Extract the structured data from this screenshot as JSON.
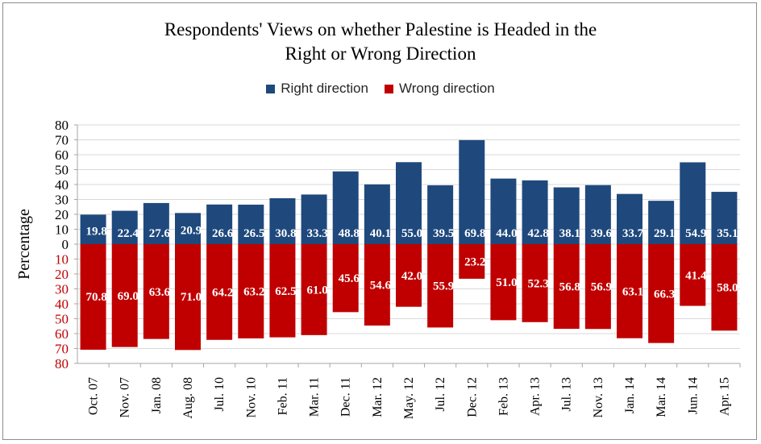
{
  "chart_data": {
    "type": "bar",
    "title": "Respondents' Views on whether Palestine is Headed in the\nRight or Wrong Direction",
    "ylabel": "Percentage",
    "xlabel": "",
    "ylim": [
      -80,
      80
    ],
    "yticks": [
      80,
      70,
      60,
      50,
      40,
      30,
      20,
      10,
      0,
      10,
      20,
      30,
      40,
      50,
      60,
      70,
      80
    ],
    "legend_position": "top-center",
    "grid": true,
    "categories": [
      "Oct. 07",
      "Nov. 07",
      "Jan. 08",
      "Aug. 08",
      "Jul. 10",
      "Nov. 10",
      "Feb. 11",
      "Mar. 11",
      "Dec. 11",
      "Mar. 12",
      "May. 12",
      "Jul. 12",
      "Dec. 12",
      "Feb. 13",
      "Apr. 13",
      "Jul. 13",
      "Nov. 13",
      "Jan. 14",
      "Mar. 14",
      "Jun. 14",
      "Apr. 15"
    ],
    "series": [
      {
        "name": "Right direction",
        "color": "#1f497d",
        "values": [
          19.8,
          22.4,
          27.6,
          20.9,
          26.6,
          26.5,
          30.8,
          33.3,
          48.8,
          40.1,
          55.0,
          39.5,
          69.8,
          44.0,
          42.8,
          38.1,
          39.6,
          33.7,
          29.1,
          54.9,
          35.1
        ],
        "labels": [
          "19.8",
          "22.4",
          "27.6",
          "20.9",
          "26.6",
          "26.5",
          "30.8",
          "33.3",
          "48.8",
          "40.1",
          "55.0",
          "39.5",
          "69.8",
          "44.0",
          "42.8",
          "38.1",
          "39.6",
          "33.7",
          "29.1",
          "54.9",
          "35.1"
        ]
      },
      {
        "name": "Wrong direction",
        "color": "#c00000",
        "values": [
          70.8,
          69.0,
          63.6,
          71.0,
          64.2,
          63.2,
          62.5,
          61.0,
          45.6,
          54.6,
          42.0,
          55.9,
          23.2,
          51.0,
          52.3,
          56.8,
          56.9,
          63.1,
          66.3,
          41.4,
          58.0
        ],
        "labels": [
          "70.8",
          "69.0",
          "63.6",
          "71.0",
          "64.2",
          "63.2",
          "62.5",
          "61.0",
          "45.6",
          "54.6",
          "42.0",
          "55.9",
          "23.2",
          "51.0",
          "52.3",
          "56.8",
          "56.9",
          "63.1",
          "66.3",
          "41.4",
          "58.0"
        ]
      }
    ],
    "colors": {
      "axis_text": "#000000",
      "tick_label_negative": "#c00000",
      "grid": "#d9d9d9",
      "data_label": "#ffffff"
    }
  }
}
